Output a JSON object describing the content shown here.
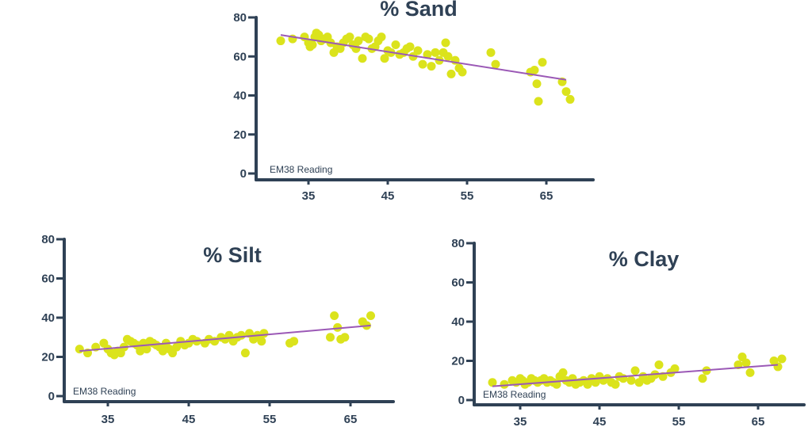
{
  "colors": {
    "axis": "#2f4155",
    "points": "#dbe31c",
    "trendline": "#9b59b6",
    "text": "#2f4155"
  },
  "chart_data": [
    {
      "type": "scatter",
      "title": "% Sand",
      "xlabel": "EM38 Reading",
      "ylabel": "",
      "xlim": [
        28,
        71
      ],
      "ylim": [
        0,
        80
      ],
      "xticks": [
        35,
        45,
        55,
        65
      ],
      "yticks": [
        0,
        20,
        40,
        60,
        80
      ],
      "trendline": {
        "x": [
          31.5,
          67.5
        ],
        "y": [
          71,
          48
        ]
      },
      "series": [
        {
          "name": "% Sand",
          "x": [
            31.5,
            33,
            34.5,
            35,
            35.2,
            35.5,
            35.8,
            36,
            36.3,
            36.6,
            37,
            37.4,
            37.8,
            38.2,
            38.6,
            39,
            39.4,
            39.8,
            40.2,
            40.6,
            41,
            41.3,
            41.8,
            42.2,
            42.6,
            43,
            43.4,
            43.8,
            44.2,
            44.6,
            45,
            45.4,
            46,
            46.5,
            47,
            47.4,
            47.8,
            48.2,
            48.8,
            49.4,
            50,
            50.5,
            51,
            51.5,
            52,
            52.3,
            52.6,
            53,
            53.5,
            54,
            54.4,
            58,
            58.6,
            63,
            63.5,
            63.8,
            64,
            64.5,
            67,
            67.5,
            68
          ],
          "y": [
            68,
            69,
            70,
            67,
            65,
            66,
            70,
            72,
            71,
            68,
            69,
            70,
            67,
            62,
            65,
            64,
            67,
            69,
            70,
            66,
            64,
            68,
            59,
            70,
            69,
            64,
            65,
            68,
            70,
            59,
            63,
            62,
            66,
            61,
            62,
            64,
            65,
            60,
            63,
            56,
            61,
            55,
            62,
            58,
            62,
            67,
            60,
            51,
            58,
            54,
            52,
            62,
            56,
            52,
            53,
            46,
            37,
            57,
            47,
            42,
            38
          ]
        }
      ]
    },
    {
      "type": "scatter",
      "title": "% Silt",
      "xlabel": "EM38 Reading",
      "ylabel": "",
      "xlim": [
        28,
        71
      ],
      "ylim": [
        0,
        80
      ],
      "xticks": [
        35,
        45,
        55,
        65
      ],
      "yticks": [
        0,
        20,
        40,
        60,
        80
      ],
      "trendline": {
        "x": [
          31.5,
          67.5
        ],
        "y": [
          23,
          36
        ]
      },
      "series": [
        {
          "name": "% Silt",
          "x": [
            31.5,
            32.5,
            33.5,
            34.5,
            35,
            35.4,
            35.8,
            36.2,
            36.6,
            37,
            37.4,
            37.8,
            38.2,
            38.6,
            39,
            39.4,
            39.8,
            40.2,
            40.6,
            41,
            41.4,
            41.8,
            42.2,
            42.6,
            43,
            43.5,
            44,
            44.5,
            45,
            45.5,
            46,
            47,
            47.5,
            48.2,
            49,
            49.5,
            50,
            50.5,
            51,
            51.5,
            52,
            52.5,
            53,
            53.5,
            54,
            54.3,
            57.5,
            58,
            62.5,
            63,
            63.4,
            63.8,
            64.3,
            66.5,
            67,
            67.5
          ],
          "y": [
            24,
            22,
            25,
            27,
            24,
            22,
            21,
            23,
            22,
            25,
            29,
            28,
            27,
            26,
            23,
            27,
            24,
            28,
            27,
            26,
            25,
            23,
            27,
            24,
            22,
            25,
            28,
            26,
            27,
            29,
            28,
            27,
            29,
            28,
            30,
            29,
            31,
            28,
            30,
            31,
            22,
            32,
            29,
            31,
            28,
            32,
            27,
            28,
            30,
            41,
            35,
            29,
            30,
            38,
            36,
            41
          ]
        }
      ]
    },
    {
      "type": "scatter",
      "title": "% Clay",
      "xlabel": "EM38 Reading",
      "ylabel": "",
      "xlim": [
        28,
        71
      ],
      "ylim": [
        0,
        80
      ],
      "xticks": [
        35,
        45,
        55,
        65
      ],
      "yticks": [
        0,
        20,
        40,
        60,
        80
      ],
      "trendline": {
        "x": [
          31.5,
          67.5
        ],
        "y": [
          7,
          18
        ]
      },
      "series": [
        {
          "name": "% Clay",
          "x": [
            31.5,
            33,
            34,
            34.5,
            35,
            35.3,
            35.6,
            36,
            36.4,
            36.8,
            37.2,
            37.6,
            38,
            38.4,
            38.8,
            39.2,
            39.6,
            40,
            40.4,
            40.8,
            41.2,
            41.6,
            42,
            42.5,
            43,
            43.5,
            44,
            44.5,
            45,
            45.5,
            46,
            46.5,
            47,
            47.5,
            48,
            49,
            49.5,
            50,
            50.5,
            51,
            51.5,
            52,
            52.5,
            53,
            54,
            54.5,
            58,
            58.5,
            62.5,
            63,
            63.5,
            64,
            67,
            67.5,
            68
          ],
          "y": [
            9,
            8,
            10,
            9,
            11,
            10,
            8,
            9,
            11,
            10,
            9,
            10,
            11,
            9,
            10,
            9,
            8,
            12,
            14,
            10,
            9,
            11,
            8,
            9,
            10,
            8,
            11,
            9,
            12,
            10,
            11,
            9,
            8,
            12,
            11,
            10,
            15,
            9,
            12,
            10,
            11,
            13,
            18,
            12,
            14,
            16,
            11,
            15,
            18,
            22,
            19,
            14,
            20,
            17,
            21
          ]
        }
      ]
    }
  ]
}
